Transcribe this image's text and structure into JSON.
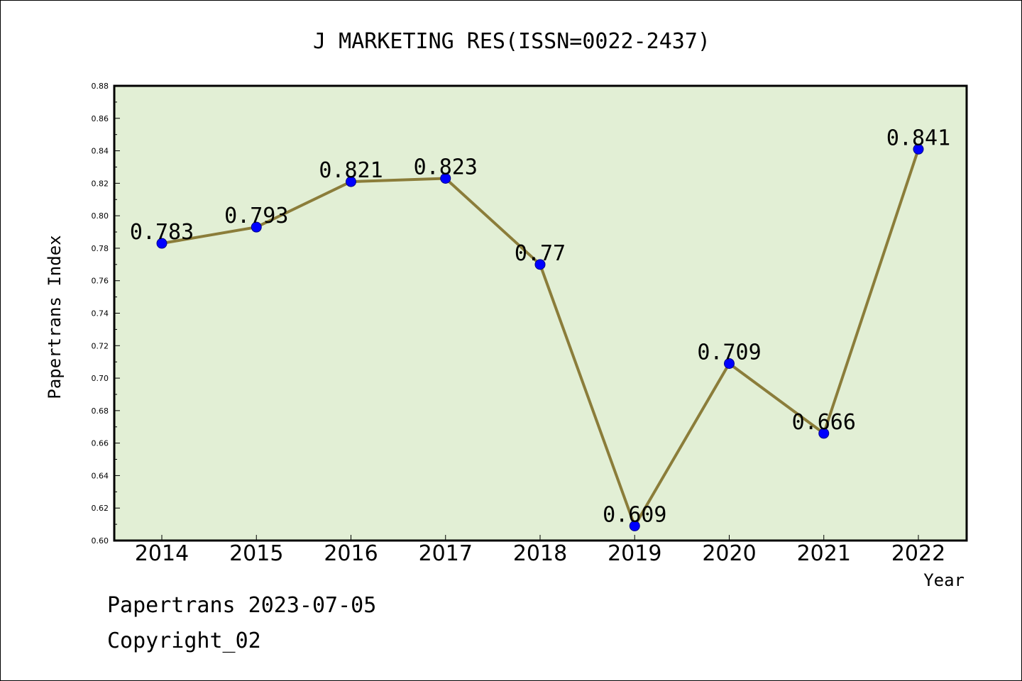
{
  "chart_data": {
    "type": "line",
    "title": "J MARKETING RES(ISSN=0022-2437)",
    "xlabel": "Year",
    "ylabel": "Papertrans Index",
    "categories": [
      "2014",
      "2015",
      "2016",
      "2017",
      "2018",
      "2019",
      "2020",
      "2021",
      "2022"
    ],
    "values": [
      0.783,
      0.793,
      0.821,
      0.823,
      0.77,
      0.609,
      0.709,
      0.666,
      0.841
    ],
    "data_labels": [
      "0.783",
      "0.793",
      "0.821",
      "0.823",
      "0.77",
      "0.609",
      "0.709",
      "0.666",
      "0.841"
    ],
    "ylim": [
      0.6,
      0.88
    ],
    "yticks": [
      "0.60",
      "0.62",
      "0.64",
      "0.66",
      "0.68",
      "0.70",
      "0.72",
      "0.74",
      "0.76",
      "0.78",
      "0.80",
      "0.82",
      "0.84",
      "0.86",
      "0.88"
    ],
    "grid": false,
    "legend": "none",
    "colors": {
      "plot_background": "#e2efd5",
      "line": "#8b7d3a",
      "marker": "#0000ff"
    }
  },
  "footer": {
    "line1": "Papertrans 2023-07-05",
    "line2": "Copyright_02"
  }
}
